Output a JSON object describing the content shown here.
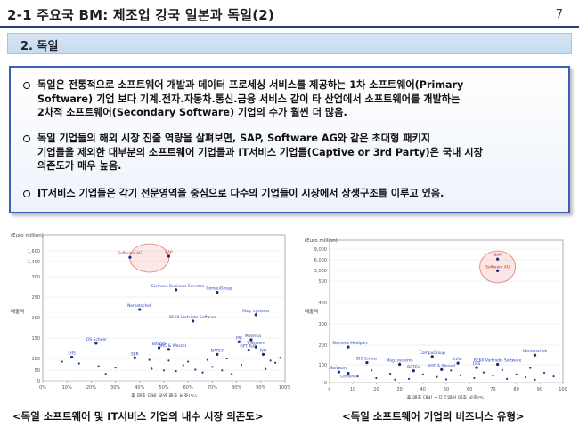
{
  "header": {
    "title": "2-1 주요국 BM: 제조업 강국 일본과 독일(2)",
    "page_number": "7"
  },
  "section": {
    "label": "2. 독일"
  },
  "bullets": [
    {
      "line1": "독일은 전통적으로 소프트웨어 개발과 데이터 프로세싱 서비스를 제공하는 1차 소프트웨어(Primary",
      "line2": "Software) 기업 보다 기계.전자.자동차.통신.금융 서비스 같이 타 산업에서 소프트웨어를 개발하는",
      "line3": "2차적 소프트웨어(Secondary Software) 기업의 수가 훨씬 더 많음."
    },
    {
      "line1": "독일 기업들의 해외 시장 진출 역량을 살펴보면, SAP, Software AG와 같은 초대형 패키지",
      "line2": "기업들을 제외한 대부분의 소프트웨어 기업들과 IT서비스 기업들(Captive or 3rd Party)은 국내 시장",
      "line3": "의존도가 매우 높음."
    },
    {
      "line1": "IT서비스 기업들은 각기 전문영역을 중심으로 다수의 기업들이 시장에서 상생구조를 이루고 있음."
    }
  ],
  "captions": {
    "left": "<독일 소프트웨어 및 IT서비스 기업의 내수 시장 의존도>",
    "right": "<독일 소프트웨어 기업의 비즈니스 유형>"
  },
  "chart_data": [
    {
      "type": "scatter",
      "ylabel_top": "(Euro million)",
      "ylabel": "매출액",
      "xlabel": "총 매출 대비 국외 매출 비중(%)",
      "y_ticks": [
        "1,600",
        "1,400",
        "300",
        "250",
        "200",
        "150",
        "100",
        "50",
        "0"
      ],
      "x_ticks": [
        "0%",
        "10%",
        "20%",
        "30%",
        "40%",
        "50%",
        "60%",
        "70%",
        "80%",
        "90%",
        "100%"
      ],
      "labels": [
        "SAP",
        "Software AG",
        "Siemens Business Services",
        "CompuGroup",
        "Nemetschek",
        "Mag. systems",
        "BEKA Vertriebs Software",
        "PSI",
        "Materna",
        "IDS Scheer",
        "T-System",
        "Bitkom",
        "AHC & Wessel",
        "DATEV",
        "IVU",
        "LHS",
        "SER",
        "GFT Tech"
      ],
      "points": [
        [
          52,
          1500
        ],
        [
          36,
          1480
        ],
        [
          55,
          262
        ],
        [
          72,
          255
        ],
        [
          40,
          205
        ],
        [
          88,
          190
        ],
        [
          62,
          172
        ],
        [
          81,
          112
        ],
        [
          86,
          118
        ],
        [
          22,
          108
        ],
        [
          88,
          97
        ],
        [
          48,
          95
        ],
        [
          52,
          90
        ],
        [
          72,
          76
        ],
        [
          91,
          76
        ],
        [
          12,
          68
        ],
        [
          38,
          66
        ],
        [
          85,
          88
        ],
        [
          8,
          55
        ],
        [
          15,
          50
        ],
        [
          23,
          42
        ],
        [
          30,
          38
        ],
        [
          45,
          35
        ],
        [
          50,
          30
        ],
        [
          55,
          28
        ],
        [
          58,
          45
        ],
        [
          63,
          32
        ],
        [
          66,
          24
        ],
        [
          70,
          40
        ],
        [
          74,
          30
        ],
        [
          78,
          20
        ],
        [
          82,
          46
        ],
        [
          92,
          34
        ],
        [
          94,
          58
        ],
        [
          96,
          52
        ],
        [
          98,
          66
        ],
        [
          26,
          20
        ],
        [
          60,
          55
        ],
        [
          44,
          60
        ],
        [
          52,
          58
        ],
        [
          68,
          60
        ],
        [
          76,
          64
        ]
      ]
    },
    {
      "type": "scatter",
      "ylabel_top": "(Euro million)",
      "ylabel": "매출액",
      "xlabel": "총 매출 대비 소프트웨어 매출 비중(%)",
      "y_ticks": [
        "9,000",
        "6,000",
        "3,000",
        "500",
        "400",
        "300",
        "200",
        "100",
        "0"
      ],
      "x_ticks": [
        "0",
        "10",
        "20",
        "30",
        "40",
        "50",
        "60",
        "70",
        "80",
        "90",
        "100"
      ],
      "labels": [
        "SAP",
        "Software AG",
        "Siemens Mediport",
        "IDS Scheer",
        "Mag. systems",
        "CompuGroup",
        "Nemetschek",
        "Infor",
        "BEKA Vertriebs Software",
        "LHS",
        "AHC & Wessel",
        "DATEV",
        "Software",
        "Comline"
      ],
      "points": [
        [
          72,
          6200
        ],
        [
          72,
          2900
        ],
        [
          8,
          175
        ],
        [
          16,
          98
        ],
        [
          30,
          90
        ],
        [
          44,
          128
        ],
        [
          88,
          135
        ],
        [
          55,
          96
        ],
        [
          72,
          90
        ],
        [
          63,
          74
        ],
        [
          48,
          64
        ],
        [
          36,
          58
        ],
        [
          4,
          52
        ],
        [
          8,
          46
        ],
        [
          12,
          30
        ],
        [
          20,
          22
        ],
        [
          26,
          44
        ],
        [
          34,
          18
        ],
        [
          40,
          40
        ],
        [
          46,
          28
        ],
        [
          50,
          16
        ],
        [
          56,
          36
        ],
        [
          62,
          22
        ],
        [
          66,
          50
        ],
        [
          70,
          34
        ],
        [
          76,
          18
        ],
        [
          80,
          40
        ],
        [
          84,
          26
        ],
        [
          88,
          14
        ],
        [
          92,
          48
        ],
        [
          96,
          30
        ],
        [
          18,
          60
        ],
        [
          28,
          14
        ],
        [
          52,
          60
        ],
        [
          74,
          62
        ],
        [
          86,
          72
        ]
      ]
    }
  ]
}
